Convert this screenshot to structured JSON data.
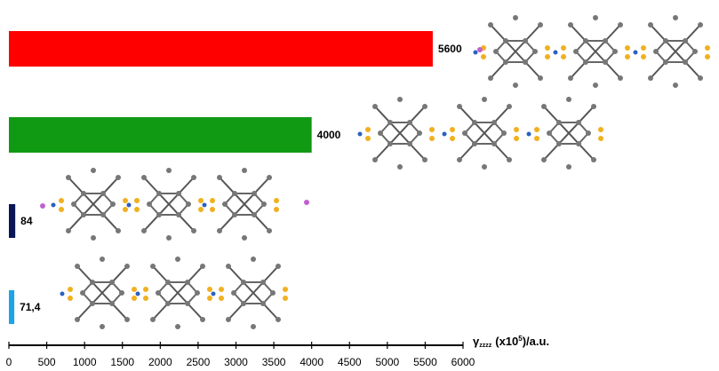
{
  "chart_data": {
    "type": "hbar",
    "categories": [
      null,
      null,
      null,
      null
    ],
    "values": [
      5600,
      4000,
      84,
      71.4
    ],
    "value_labels": [
      "5600",
      "4000",
      "84",
      "71,4"
    ],
    "colors": [
      "#ff0000",
      "#109a14",
      "#0b1655",
      "#1ba4ea"
    ],
    "xlim": [
      0,
      6000
    ],
    "xticks": [
      0,
      500,
      1000,
      1500,
      2000,
      2500,
      3000,
      3500,
      4000,
      4500,
      5000,
      5500,
      6000
    ],
    "xlabel": {
      "symbol": "γ",
      "subscript": "zzzz",
      "text": "(x10",
      "superscript": "5",
      "unit": ")/a.u."
    }
  }
}
